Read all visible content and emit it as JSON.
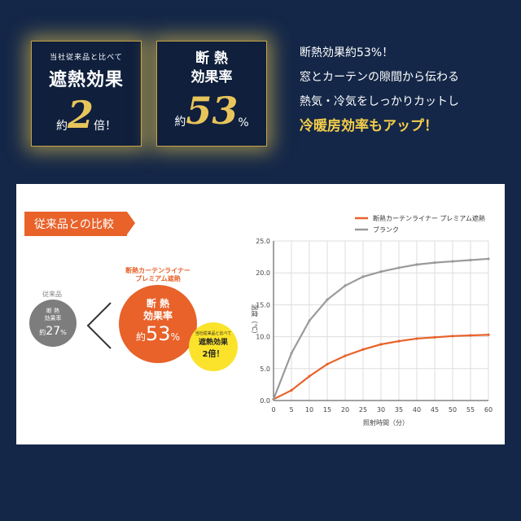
{
  "badge1": {
    "line1": "当社従来品と比べて",
    "line2": "遮熱効果",
    "pre": "約",
    "num": "2",
    "suf": "倍！"
  },
  "badge2": {
    "line1": "断 熱",
    "line2": "効果率",
    "pre": "約",
    "num": "53",
    "suf": "%"
  },
  "right_text": {
    "l1": "断熱効果約53%！",
    "l2": "窓とカーテンの隙間から伝わる",
    "l3": "熱気・冷気をしっかりカットし",
    "l4": "冷暖房効率もアップ！"
  },
  "panel": {
    "tag": "従来品との比較",
    "grey_label": "従来品",
    "grey_title1": "断 熱",
    "grey_title2": "効果率",
    "grey_pre": "約",
    "grey_val": "27",
    "grey_suf": "%",
    "orange_label1": "断熱カーテンライナー",
    "orange_label2": "プレミアム遮熱",
    "orange_title1": "断 熱",
    "orange_title2": "効果率",
    "orange_pre": "約",
    "orange_val": "53",
    "orange_suf": "%",
    "yellow_small": "当社従来品と比べて",
    "yellow_title": "遮熱効果",
    "yellow_val": "2倍！"
  },
  "chart_data": {
    "type": "line",
    "x": [
      0,
      5,
      10,
      15,
      20,
      25,
      30,
      35,
      40,
      45,
      50,
      55,
      60
    ],
    "series": [
      {
        "name": "断熱カーテンライナー プレミアム遮熱",
        "color": "#e8622a",
        "values": [
          0.2,
          1.6,
          3.8,
          5.7,
          7.0,
          8.0,
          8.8,
          9.3,
          9.7,
          9.9,
          10.1,
          10.2,
          10.3
        ]
      },
      {
        "name": "ブランク",
        "color": "#9a9a9a",
        "values": [
          0.2,
          7.4,
          12.5,
          15.8,
          18.0,
          19.4,
          20.2,
          20.8,
          21.3,
          21.6,
          21.8,
          22.0,
          22.2
        ]
      }
    ],
    "xlabel": "照射時間（分）",
    "ylabel": "温度（℃）",
    "xlim": [
      0,
      60
    ],
    "ylim": [
      0,
      25
    ],
    "xticks": [
      "0",
      "5",
      "10",
      "15",
      "20",
      "25",
      "30",
      "35",
      "40",
      "45",
      "50",
      "55",
      "60"
    ],
    "yticks": [
      "0.0",
      "5.0",
      "10.0",
      "15.0",
      "20.0",
      "25.0"
    ],
    "legend": "top"
  }
}
